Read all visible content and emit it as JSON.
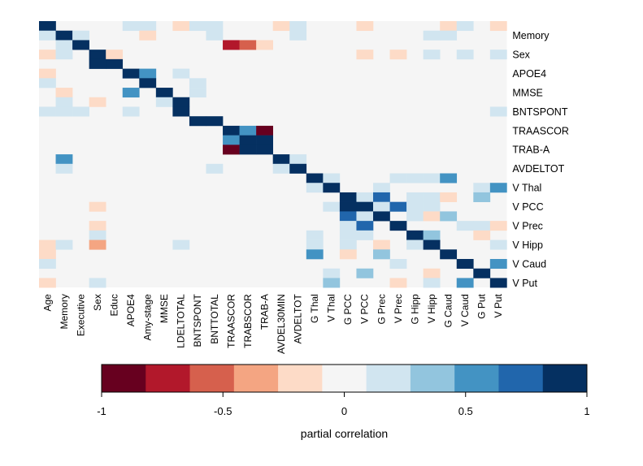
{
  "chart_data": {
    "type": "heatmap",
    "x_labels": [
      "Age",
      "Memory",
      "Executive",
      "Sex",
      "Educ",
      "APOE4",
      "Amy-stage",
      "MMSE",
      "LDELTOTAL",
      "BNTSPONT",
      "BNTTOTAL",
      "TRAASCOR",
      "TRABSCOR",
      "TRAB-A",
      "AVDEL30MIN",
      "AVDELTOT",
      "G Thal",
      "V Thal",
      "G PCC",
      "V PCC",
      "G Prec",
      "V Prec",
      "G Hipp",
      "V Hipp",
      "G Caud",
      "V Caud",
      "G Put",
      "V Put"
    ],
    "y_labels": [
      "Memory",
      "Sex",
      "APOE4",
      "MMSE",
      "BNTSPONT",
      "TRAASCOR",
      "TRAB-A",
      "AVDELTOT",
      "V Thal",
      "V PCC",
      "V Prec",
      "V Hipp",
      "V Caud",
      "V Put"
    ],
    "n_rows": 28,
    "y_label_row_indices": [
      1,
      3,
      5,
      7,
      9,
      11,
      13,
      15,
      17,
      19,
      21,
      23,
      25,
      27
    ],
    "value_range": [
      -1,
      1
    ],
    "colorbar": {
      "title": "partial correlation",
      "ticks": [
        "-1",
        "-0.5",
        "0",
        "0.5",
        "1"
      ],
      "tick_values": [
        -1,
        -0.5,
        0,
        0.5,
        1
      ],
      "bins": [
        -1,
        -0.818,
        -0.636,
        -0.455,
        -0.273,
        -0.091,
        0.091,
        0.273,
        0.455,
        0.636,
        0.818,
        1
      ],
      "colors": [
        "#67001F",
        "#B2182B",
        "#D6604D",
        "#F4A582",
        "#FDDBC7",
        "#F5F5F5",
        "#D1E5F0",
        "#92C5DE",
        "#4393C3",
        "#2166AC",
        "#053061"
      ]
    },
    "cells": [
      [
        0,
        0,
        1
      ],
      [
        0,
        5,
        0.2
      ],
      [
        0,
        6,
        0.2
      ],
      [
        0,
        8,
        -0.2
      ],
      [
        0,
        9,
        0.15
      ],
      [
        0,
        10,
        0.15
      ],
      [
        0,
        14,
        -0.2
      ],
      [
        0,
        15,
        0.2
      ],
      [
        0,
        19,
        -0.2
      ],
      [
        0,
        24,
        -0.2
      ],
      [
        0,
        25,
        0.15
      ],
      [
        0,
        27,
        -0.2
      ],
      [
        1,
        0,
        0.2
      ],
      [
        1,
        1,
        1
      ],
      [
        1,
        2,
        0.15
      ],
      [
        1,
        6,
        -0.2
      ],
      [
        1,
        10,
        0.2
      ],
      [
        1,
        15,
        0.15
      ],
      [
        1,
        23,
        0.2
      ],
      [
        1,
        24,
        0.15
      ],
      [
        2,
        1,
        0.2
      ],
      [
        2,
        2,
        1
      ],
      [
        2,
        11,
        -0.7
      ],
      [
        2,
        12,
        -0.55
      ],
      [
        2,
        13,
        -0.2
      ],
      [
        3,
        0,
        -0.2
      ],
      [
        3,
        1,
        0.15
      ],
      [
        3,
        3,
        1
      ],
      [
        3,
        4,
        -0.2
      ],
      [
        3,
        19,
        -0.2
      ],
      [
        3,
        21,
        -0.2
      ],
      [
        3,
        23,
        0.15
      ],
      [
        3,
        25,
        0.15
      ],
      [
        3,
        27,
        0.2
      ],
      [
        4,
        3,
        1
      ],
      [
        4,
        4,
        1
      ],
      [
        5,
        0,
        -0.2
      ],
      [
        5,
        5,
        1
      ],
      [
        5,
        6,
        0.6
      ],
      [
        5,
        8,
        0.2
      ],
      [
        6,
        0,
        0.15
      ],
      [
        6,
        6,
        1
      ],
      [
        6,
        9,
        0.15
      ],
      [
        7,
        1,
        -0.2
      ],
      [
        7,
        5,
        0.6
      ],
      [
        7,
        7,
        1
      ],
      [
        7,
        9,
        0.2
      ],
      [
        8,
        1,
        0.15
      ],
      [
        8,
        3,
        -0.2
      ],
      [
        8,
        7,
        0.15
      ],
      [
        8,
        8,
        1
      ],
      [
        9,
        0,
        0.2
      ],
      [
        9,
        1,
        0.15
      ],
      [
        9,
        2,
        0.2
      ],
      [
        9,
        5,
        0.2
      ],
      [
        9,
        8,
        1
      ],
      [
        9,
        27,
        0.15
      ],
      [
        10,
        9,
        1
      ],
      [
        10,
        10,
        1
      ],
      [
        11,
        11,
        1
      ],
      [
        11,
        12,
        0.5
      ],
      [
        11,
        13,
        -0.85
      ],
      [
        12,
        11,
        0.5
      ],
      [
        12,
        12,
        1
      ],
      [
        12,
        13,
        1
      ],
      [
        13,
        11,
        -0.85
      ],
      [
        13,
        12,
        1
      ],
      [
        13,
        13,
        1
      ],
      [
        14,
        1,
        0.5
      ],
      [
        14,
        14,
        1
      ],
      [
        14,
        15,
        0.15
      ],
      [
        15,
        1,
        0.15
      ],
      [
        15,
        10,
        0.15
      ],
      [
        15,
        14,
        0.15
      ],
      [
        15,
        15,
        1
      ],
      [
        16,
        16,
        1
      ],
      [
        16,
        17,
        0.2
      ],
      [
        16,
        21,
        0.15
      ],
      [
        16,
        22,
        0.15
      ],
      [
        16,
        23,
        0.15
      ],
      [
        16,
        24,
        0.6
      ],
      [
        17,
        16,
        0.2
      ],
      [
        17,
        17,
        1
      ],
      [
        17,
        20,
        0.15
      ],
      [
        17,
        26,
        0.2
      ],
      [
        17,
        27,
        0.5
      ],
      [
        18,
        18,
        1
      ],
      [
        18,
        19,
        0.15
      ],
      [
        18,
        20,
        0.7
      ],
      [
        18,
        22,
        0.15
      ],
      [
        18,
        23,
        0.2
      ],
      [
        18,
        24,
        -0.2
      ],
      [
        18,
        26,
        0.4
      ],
      [
        19,
        3,
        -0.2
      ],
      [
        19,
        17,
        0.15
      ],
      [
        19,
        18,
        1
      ],
      [
        19,
        19,
        1
      ],
      [
        19,
        20,
        0.2
      ],
      [
        19,
        21,
        0.7
      ],
      [
        19,
        22,
        0.15
      ],
      [
        19,
        23,
        0.2
      ],
      [
        20,
        18,
        0.7
      ],
      [
        20,
        19,
        0.2
      ],
      [
        20,
        20,
        1
      ],
      [
        20,
        22,
        0.2
      ],
      [
        20,
        23,
        -0.2
      ],
      [
        20,
        24,
        0.3
      ],
      [
        21,
        3,
        -0.2
      ],
      [
        21,
        18,
        0.2
      ],
      [
        21,
        19,
        0.7
      ],
      [
        21,
        21,
        1
      ],
      [
        21,
        25,
        0.15
      ],
      [
        21,
        26,
        0.15
      ],
      [
        21,
        27,
        -0.2
      ],
      [
        22,
        3,
        0.2
      ],
      [
        22,
        16,
        0.15
      ],
      [
        22,
        18,
        0.2
      ],
      [
        22,
        19,
        0.15
      ],
      [
        22,
        22,
        1
      ],
      [
        22,
        23,
        0.3
      ],
      [
        22,
        26,
        -0.2
      ],
      [
        23,
        0,
        -0.2
      ],
      [
        23,
        1,
        0.2
      ],
      [
        23,
        3,
        -0.4
      ],
      [
        23,
        8,
        0.15
      ],
      [
        23,
        16,
        0.15
      ],
      [
        23,
        18,
        0.2
      ],
      [
        23,
        20,
        -0.2
      ],
      [
        23,
        22,
        0.2
      ],
      [
        23,
        23,
        1
      ],
      [
        23,
        27,
        0.15
      ],
      [
        24,
        0,
        -0.2
      ],
      [
        24,
        16,
        0.6
      ],
      [
        24,
        18,
        -0.2
      ],
      [
        24,
        20,
        0.4
      ],
      [
        24,
        24,
        1
      ],
      [
        25,
        0,
        0.15
      ],
      [
        25,
        21,
        0.2
      ],
      [
        25,
        25,
        1
      ],
      [
        25,
        27,
        0.6
      ],
      [
        26,
        17,
        0.2
      ],
      [
        26,
        19,
        0.4
      ],
      [
        26,
        23,
        -0.2
      ],
      [
        26,
        26,
        1
      ],
      [
        27,
        0,
        -0.2
      ],
      [
        27,
        3,
        0.15
      ],
      [
        27,
        17,
        0.4
      ],
      [
        27,
        21,
        -0.2
      ],
      [
        27,
        23,
        0.2
      ],
      [
        27,
        25,
        0.6
      ],
      [
        27,
        27,
        1
      ]
    ]
  }
}
